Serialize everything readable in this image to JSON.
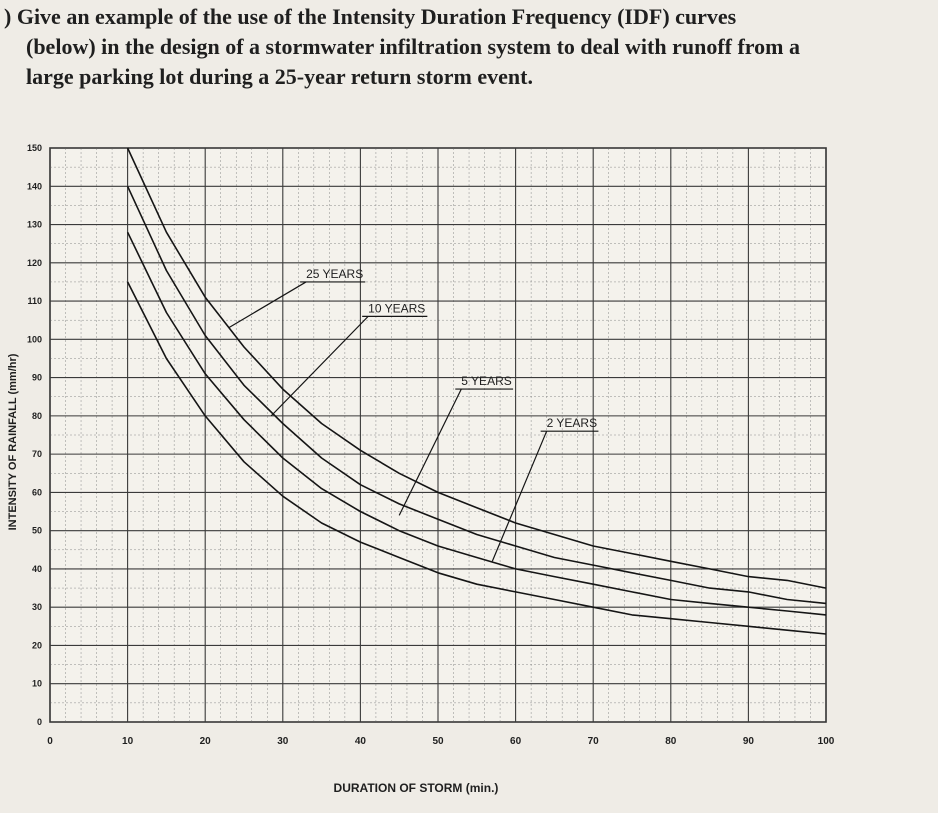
{
  "question": {
    "lines": [
      ") Give an example of the use of the Intensity Duration Frequency (IDF) curves",
      "(below) in the design of a stormwater infiltration system to deal with runoff from a",
      "large parking lot during a 25-year return storm event."
    ]
  },
  "chart_data": {
    "type": "line",
    "title": "",
    "xlabel": "DURATION OF STORM (min.)",
    "ylabel": "INTENSITY OF RAINFALL (mm/hr)",
    "xlim": [
      0,
      100
    ],
    "ylim": [
      0,
      150
    ],
    "x_ticks": [
      0,
      10,
      20,
      30,
      40,
      50,
      60,
      70,
      80,
      90,
      100
    ],
    "x_tick_labels": [
      "0",
      "10",
      "20",
      "30",
      "40",
      "50",
      "60",
      "70",
      "80",
      "90",
      "100"
    ],
    "y_ticks": [
      0,
      10,
      20,
      30,
      40,
      50,
      60,
      70,
      80,
      90,
      100,
      110,
      120,
      130,
      140,
      150
    ],
    "y_tick_labels": [
      "0",
      "10",
      "20",
      "30",
      "40",
      "50",
      "60",
      "70",
      "80",
      "90",
      "100",
      "110",
      "120",
      "130",
      "140",
      "150"
    ],
    "grid": true,
    "x": [
      10,
      15,
      20,
      25,
      30,
      35,
      40,
      45,
      50,
      55,
      60,
      65,
      70,
      75,
      80,
      85,
      90,
      95,
      100
    ],
    "series": [
      {
        "name": "25 YEARS",
        "values": [
          150,
          128,
          111,
          98,
          87,
          78,
          71,
          65,
          60,
          56,
          52,
          49,
          46,
          44,
          42,
          40,
          38,
          37,
          35
        ]
      },
      {
        "name": "10 YEARS",
        "values": [
          140,
          118,
          101,
          88,
          78,
          69,
          62,
          57,
          53,
          49,
          46,
          43,
          41,
          39,
          37,
          35,
          34,
          32,
          31
        ]
      },
      {
        "name": "5 YEARS",
        "values": [
          128,
          107,
          91,
          79,
          69,
          61,
          55,
          50,
          46,
          43,
          40,
          38,
          36,
          34,
          32,
          31,
          30,
          29,
          28
        ]
      },
      {
        "name": "2 YEARS",
        "values": [
          115,
          95,
          80,
          68,
          59,
          52,
          47,
          43,
          39,
          36,
          34,
          32,
          30,
          28,
          27,
          26,
          25,
          24,
          23
        ]
      }
    ],
    "annotations": [
      {
        "text": "25 YEARS",
        "label_at": [
          33,
          115
        ],
        "arrow_to": [
          23,
          103
        ]
      },
      {
        "text": "10 YEARS",
        "label_at": [
          41,
          106
        ],
        "arrow_to": [
          28.5,
          80
        ]
      },
      {
        "text": "5 YEARS",
        "label_at": [
          53,
          87
        ],
        "arrow_to": [
          45,
          54
        ]
      },
      {
        "text": "2 YEARS",
        "label_at": [
          64,
          76
        ],
        "arrow_to": [
          57,
          42
        ]
      }
    ]
  }
}
